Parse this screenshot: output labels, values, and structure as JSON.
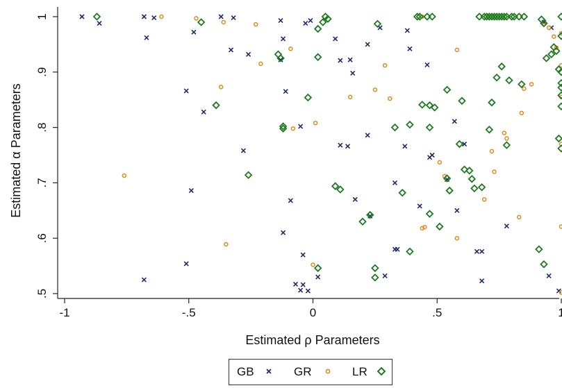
{
  "chart_data": {
    "type": "scatter",
    "title": "",
    "xlabel": "Estimated ρ Parameters",
    "ylabel": "Estimated α Parameters",
    "xlim": [
      -1.0,
      1.0
    ],
    "ylim": [
      0.5,
      1.0
    ],
    "xticks": [
      -1,
      -0.5,
      0,
      0.5,
      1
    ],
    "xtick_labels": [
      "-1",
      "-.5",
      "0",
      ".5",
      "1"
    ],
    "yticks": [
      0.5,
      0.6,
      0.7,
      0.8,
      0.9,
      1.0
    ],
    "ytick_labels": [
      ".5",
      ".6",
      ".7",
      ".8",
      ".9",
      "1"
    ],
    "grid": false,
    "legend_position": "bottom",
    "series": [
      {
        "name": "GB",
        "marker": "x",
        "color": "#1f2a6b",
        "points": [
          [
            -0.93,
            1.0
          ],
          [
            -0.86,
            0.988
          ],
          [
            -0.68,
            1.0
          ],
          [
            -0.67,
            0.962
          ],
          [
            -0.64,
            0.998
          ],
          [
            -0.48,
            0.972
          ],
          [
            -0.37,
            1.0
          ],
          [
            -0.32,
            0.998
          ],
          [
            -0.33,
            0.94
          ],
          [
            -0.26,
            0.932
          ],
          [
            -0.13,
            0.993
          ],
          [
            -0.12,
            0.96
          ],
          [
            -0.13,
            0.922
          ],
          [
            -0.03,
            0.988
          ],
          [
            -0.01,
            0.993
          ],
          [
            -0.51,
            0.866
          ],
          [
            -0.44,
            0.828
          ],
          [
            -0.11,
            0.865
          ],
          [
            -0.28,
            0.758
          ],
          [
            -0.05,
            0.802
          ],
          [
            -0.49,
            0.686
          ],
          [
            -0.09,
            0.668
          ],
          [
            -0.12,
            0.61
          ],
          [
            -0.51,
            0.554
          ],
          [
            -0.68,
            0.525
          ],
          [
            -0.04,
            0.57
          ],
          [
            -0.07,
            0.517
          ],
          [
            -0.05,
            0.506
          ],
          [
            -0.04,
            0.516
          ],
          [
            -0.02,
            0.505
          ],
          [
            0.02,
            0.53
          ],
          [
            0.09,
            0.96
          ],
          [
            0.11,
            0.921
          ],
          [
            0.15,
            0.922
          ],
          [
            0.16,
            0.898
          ],
          [
            0.22,
            0.95
          ],
          [
            0.27,
            0.98
          ],
          [
            0.11,
            0.768
          ],
          [
            0.14,
            0.766
          ],
          [
            0.22,
            0.786
          ],
          [
            0.37,
            0.766
          ],
          [
            0.33,
            0.7
          ],
          [
            0.17,
            0.67
          ],
          [
            0.23,
            0.64
          ],
          [
            0.33,
            0.58
          ],
          [
            0.34,
            0.58
          ],
          [
            0.29,
            0.532
          ],
          [
            0.38,
            0.975
          ],
          [
            0.39,
            0.942
          ],
          [
            0.46,
            0.913
          ],
          [
            0.57,
            0.811
          ],
          [
            0.61,
            0.77
          ],
          [
            0.47,
            0.746
          ],
          [
            0.48,
            0.75
          ],
          [
            0.54,
            0.706
          ],
          [
            0.43,
            0.658
          ],
          [
            0.58,
            0.65
          ],
          [
            0.66,
            0.576
          ],
          [
            0.68,
            0.576
          ],
          [
            0.68,
            0.523
          ],
          [
            0.78,
            0.622
          ],
          [
            0.95,
            0.532
          ],
          [
            0.99,
            0.505
          ],
          [
            0.96,
            0.98
          ],
          [
            0.93,
            0.99
          ]
        ]
      },
      {
        "name": "GR",
        "marker": "o",
        "color": "#e08a1e",
        "points": [
          [
            -0.61,
            1.0
          ],
          [
            -0.47,
            0.997
          ],
          [
            -0.36,
            0.99
          ],
          [
            -0.23,
            0.986
          ],
          [
            -0.21,
            0.915
          ],
          [
            -0.09,
            0.942
          ],
          [
            -0.37,
            0.873
          ],
          [
            -0.08,
            0.798
          ],
          [
            -0.76,
            0.713
          ],
          [
            -0.35,
            0.589
          ],
          [
            0.01,
            0.808
          ],
          [
            0.0,
            0.552
          ],
          [
            0.15,
            0.855
          ],
          [
            0.25,
            0.868
          ],
          [
            0.29,
            0.912
          ],
          [
            0.31,
            0.852
          ],
          [
            0.44,
            1.0
          ],
          [
            0.58,
            0.94
          ],
          [
            0.45,
            0.62
          ],
          [
            0.44,
            0.618
          ],
          [
            0.51,
            0.737
          ],
          [
            0.53,
            0.712
          ],
          [
            0.58,
            0.6
          ],
          [
            0.69,
            0.67
          ],
          [
            0.72,
            0.757
          ],
          [
            0.73,
            0.72
          ],
          [
            0.77,
            0.79
          ],
          [
            0.78,
            0.78
          ],
          [
            0.85,
            0.87
          ],
          [
            0.88,
            0.878
          ],
          [
            0.84,
            0.826
          ],
          [
            0.83,
            0.638
          ],
          [
            0.93,
            0.99
          ],
          [
            0.95,
            0.98
          ],
          [
            0.97,
            0.964
          ],
          [
            0.98,
            0.944
          ],
          [
            1.0,
            0.97
          ],
          [
            1.0,
            0.912
          ],
          [
            1.0,
            0.855
          ],
          [
            1.0,
            0.77
          ],
          [
            1.0,
            0.621
          ],
          [
            1.0,
            0.502
          ]
        ]
      },
      {
        "name": "LR",
        "marker": "diamond",
        "color": "#1e7a1e",
        "points": [
          [
            -0.87,
            1.0
          ],
          [
            -0.45,
            0.99
          ],
          [
            -0.14,
            0.932
          ],
          [
            -0.13,
            0.925
          ],
          [
            -0.39,
            0.84
          ],
          [
            -0.12,
            0.802
          ],
          [
            -0.12,
            0.798
          ],
          [
            -0.26,
            0.714
          ],
          [
            0.02,
            0.978
          ],
          [
            0.04,
            0.99
          ],
          [
            0.05,
            1.0
          ],
          [
            0.06,
            0.996
          ],
          [
            0.02,
            0.927
          ],
          [
            -0.02,
            0.854
          ],
          [
            0.09,
            0.694
          ],
          [
            0.11,
            0.688
          ],
          [
            0.02,
            0.546
          ],
          [
            0.2,
            0.63
          ],
          [
            0.23,
            0.642
          ],
          [
            0.26,
            0.987
          ],
          [
            0.42,
            1.0
          ],
          [
            0.43,
            1.0
          ],
          [
            0.46,
            1.0
          ],
          [
            0.48,
            1.0
          ],
          [
            0.33,
            0.8
          ],
          [
            0.39,
            0.805
          ],
          [
            0.36,
            0.682
          ],
          [
            0.39,
            0.576
          ],
          [
            0.25,
            0.546
          ],
          [
            0.25,
            0.529
          ],
          [
            0.44,
            0.841
          ],
          [
            0.47,
            0.84
          ],
          [
            0.49,
            0.836
          ],
          [
            0.47,
            0.8
          ],
          [
            0.54,
            0.868
          ],
          [
            0.6,
            0.848
          ],
          [
            0.59,
            0.77
          ],
          [
            0.61,
            0.724
          ],
          [
            0.63,
            0.722
          ],
          [
            0.65,
            0.69
          ],
          [
            0.68,
            0.692
          ],
          [
            0.64,
            0.707
          ],
          [
            0.55,
            0.686
          ],
          [
            0.54,
            0.708
          ],
          [
            0.51,
            0.621
          ],
          [
            0.47,
            0.644
          ],
          [
            0.67,
            1.0
          ],
          [
            0.69,
            1.0
          ],
          [
            0.7,
            1.0
          ],
          [
            0.71,
            1.0
          ],
          [
            0.72,
            1.0
          ],
          [
            0.73,
            1.0
          ],
          [
            0.74,
            1.0
          ],
          [
            0.75,
            1.0
          ],
          [
            0.76,
            1.0
          ],
          [
            0.77,
            1.0
          ],
          [
            0.78,
            1.0
          ],
          [
            0.8,
            1.0
          ],
          [
            0.81,
            1.0
          ],
          [
            0.83,
            1.0
          ],
          [
            0.85,
            1.0
          ],
          [
            0.76,
            0.91
          ],
          [
            0.74,
            0.89
          ],
          [
            0.79,
            0.885
          ],
          [
            0.84,
            0.878
          ],
          [
            0.78,
            0.768
          ],
          [
            0.72,
            0.845
          ],
          [
            0.71,
            0.796
          ],
          [
            0.92,
            0.995
          ],
          [
            0.93,
            0.988
          ],
          [
            0.94,
            0.925
          ],
          [
            0.96,
            0.932
          ],
          [
            0.97,
            0.945
          ],
          [
            0.98,
            0.938
          ],
          [
            1.0,
            1.0
          ],
          [
            1.0,
            0.965
          ],
          [
            0.99,
            0.905
          ],
          [
            1.0,
            0.9
          ],
          [
            1.0,
            0.88
          ],
          [
            1.0,
            0.872
          ],
          [
            1.0,
            0.858
          ],
          [
            1.0,
            0.838
          ],
          [
            0.99,
            0.78
          ],
          [
            1.0,
            0.762
          ],
          [
            0.91,
            0.58
          ],
          [
            0.93,
            0.553
          ]
        ]
      }
    ]
  },
  "legend": {
    "items": [
      {
        "label": "GB"
      },
      {
        "label": "GR"
      },
      {
        "label": "LR"
      }
    ]
  }
}
